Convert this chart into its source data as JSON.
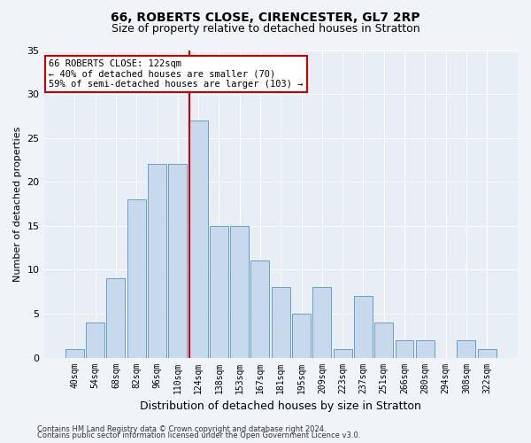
{
  "title_line1": "66, ROBERTS CLOSE, CIRENCESTER, GL7 2RP",
  "title_line2": "Size of property relative to detached houses in Stratton",
  "xlabel": "Distribution of detached houses by size in Stratton",
  "ylabel": "Number of detached properties",
  "categories": [
    "40sqm",
    "54sqm",
    "68sqm",
    "82sqm",
    "96sqm",
    "110sqm",
    "124sqm",
    "138sqm",
    "153sqm",
    "167sqm",
    "181sqm",
    "195sqm",
    "209sqm",
    "223sqm",
    "237sqm",
    "251sqm",
    "266sqm",
    "280sqm",
    "294sqm",
    "308sqm",
    "322sqm"
  ],
  "values": [
    1,
    4,
    9,
    18,
    22,
    22,
    27,
    15,
    15,
    11,
    8,
    5,
    8,
    1,
    7,
    4,
    2,
    2,
    0,
    2,
    1
  ],
  "bar_color": "#c9d9ed",
  "bar_edge_color": "#6a9fc0",
  "highlight_bar_index": 6,
  "vline_color": "#cc0000",
  "annotation_text": "66 ROBERTS CLOSE: 122sqm\n← 40% of detached houses are smaller (70)\n59% of semi-detached houses are larger (103) →",
  "annotation_box_color": "#ffffff",
  "annotation_box_edge": "#cc0000",
  "ylim": [
    0,
    35
  ],
  "yticks": [
    0,
    5,
    10,
    15,
    20,
    25,
    30,
    35
  ],
  "background_color": "#e8eef5",
  "fig_background_color": "#f0f4f8",
  "footer_line1": "Contains HM Land Registry data © Crown copyright and database right 2024.",
  "footer_line2": "Contains public sector information licensed under the Open Government Licence v3.0.",
  "title_fontsize": 10,
  "subtitle_fontsize": 9,
  "tick_fontsize": 7,
  "ylabel_fontsize": 8,
  "xlabel_fontsize": 9,
  "annotation_fontsize": 7.5,
  "footer_fontsize": 6
}
